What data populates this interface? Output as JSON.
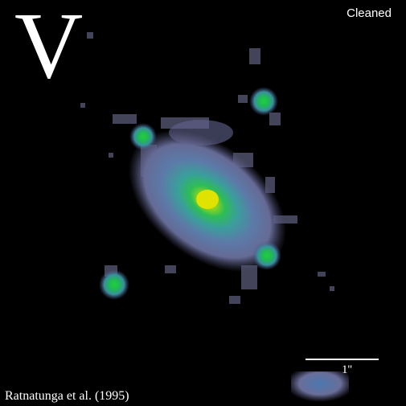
{
  "band_letter": "V",
  "processing_label": "Cleaned",
  "credit": "Ratnatunga et al. (1995)",
  "scale_label": "1''",
  "colors": {
    "background": "#000000",
    "halo": "#6f72a0",
    "mid": "#3aa39a",
    "core": "#27c24e",
    "peak": "#e6e600"
  }
}
